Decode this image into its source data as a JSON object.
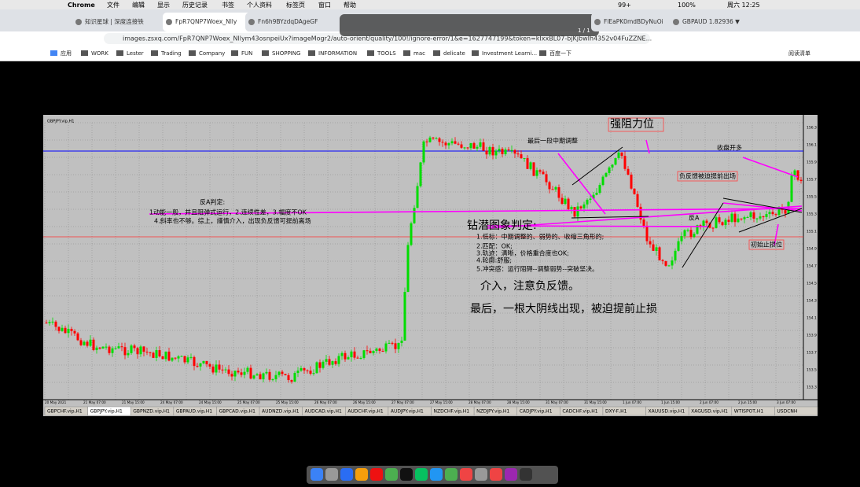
{
  "menu_bar": {
    "items": [
      "Chrome",
      "文件",
      "编辑",
      "显示",
      "历史记录",
      "书签",
      "个人资料",
      "标签页",
      "窗口",
      "帮助"
    ],
    "status": [
      "99+",
      "100%",
      "周六 12:25"
    ]
  },
  "tabs": [
    "知识星球 | 深度连接铁",
    "FpR7QNP7Woex_Nlly",
    "Fn6h9BYzdqDAgeGF",
    "FlEaPK0mdBDyNuOi",
    "GBPAUD 1.82936 ▼"
  ],
  "page_counter": "1 / 1",
  "url": "images.zsxq.com/FpR7QNP7Woex_Nllym43osnpeiUx?imageMogr2/auto-orient/quality/100!/ignore-error/1&e=1627747199&token=kIxxBL07-bjKjbwIh4352v04FuZZNE...",
  "bookmarks": [
    "应用",
    "WORK",
    "Lester",
    "Trading",
    "Company",
    "FUN",
    "SHOPPING",
    "INFORMATION",
    "TOOLS",
    "mac",
    "delicate",
    "Investment Learni...",
    "百度一下"
  ],
  "reading_list": "阅读清单",
  "chart": {
    "header": "GBPJPY.vip,H1",
    "annotations": {
      "resistance": "强阻力位",
      "last_adjust": "最后一段中期调整",
      "close_long": "收盘开多",
      "negative_exit": "负反馈被迫提前出场",
      "anti_a": "反A",
      "initial_stop": "初始止损位"
    },
    "anti_a_judgement": [
      "反A判定:",
      "1动能一般，并且阻弹式运行，2.连续性差，3.幅度不OK",
      "4.斜率也不够。综上，謹慎介入，出现负反馈可提前离场"
    ],
    "diamond_judgement": [
      "钻潜图象判定:",
      "1.低标：中期调整的、弱势的、收缩三角形的;",
      "2.匹配：OK;",
      "3.轨迹：清晰，价格重合度也OK;",
      "4.轮廓:舒服;",
      "5.冲突感：运行阻碍--调整弱势--突破坚决。"
    ],
    "entry_note": "介入，注意负反馈。",
    "final_note": "最后，一根大阴线出现，被迫提前止损",
    "price_labels": [
      "156.3",
      "156.1",
      "155.9",
      "155.7",
      "155.5",
      "155.3",
      "155.1",
      "154.9",
      "154.7",
      "154.5",
      "154.3",
      "154.1",
      "153.9",
      "153.7",
      "153.5",
      "153.3"
    ],
    "time_labels": [
      "20 May 2021",
      "21 May 07:00",
      "21 May 15:00",
      "24 May 07:00",
      "24 May 15:00",
      "25 May 07:00",
      "25 May 15:00",
      "26 May 07:00",
      "26 May 15:00",
      "27 May 07:00",
      "27 May 15:00",
      "28 May 07:00",
      "28 May 15:00",
      "31 May 07:00",
      "31 May 15:00",
      "1 Jun 07:00",
      "1 Jun 15:00",
      "2 Jun 07:00",
      "2 Jun 15:00",
      "3 Jun 07:00"
    ],
    "symbol_tabs": [
      "GBPCHF.vip,H1",
      "GBPJPY.vip,H1",
      "GBPNZD.vip,H1",
      "GBPAUD.vip,H1",
      "GBPCAD.vip,H1",
      "AUDNZD.vip,H1",
      "AUDCAD.vip,H1",
      "AUDCHF.vip,H1",
      "AUDJPY.vip,H1",
      "NZDCHF.vip,H1",
      "NZDJPY.vip,H1",
      "CADJPY.vip,H1",
      "CADCHF.vip,H1",
      "DXY-F,H1",
      "XAUUSD.vip,H1",
      "XAGUSD.vip,H1",
      "WTISPOT,H1",
      "USDCNH"
    ]
  }
}
